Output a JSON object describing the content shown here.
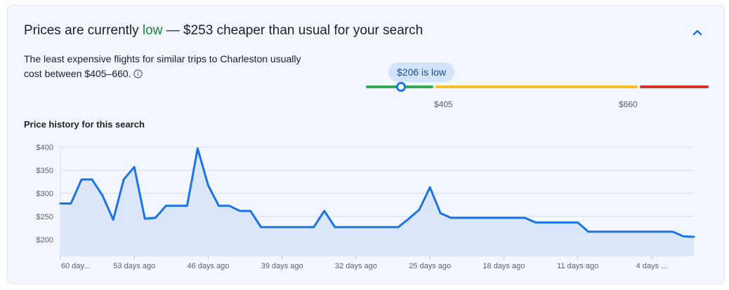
{
  "summary": {
    "headline_prefix": "Prices are currently ",
    "headline_status": "low",
    "headline_suffix": " — $253 cheaper than usual for your search",
    "description": "The least expensive flights for similar trips to Charleston usually cost between $405–660.",
    "collapse_icon": "chevron-up-icon",
    "info_icon": "info-icon"
  },
  "price_range": {
    "current_label": "$206 is low",
    "current_price": 206,
    "low_threshold_label": "$405",
    "high_threshold_label": "$660",
    "colors": {
      "low": "#34a853",
      "typical": "#f6c026",
      "high": "#d93025",
      "marker": "#1a73e8"
    }
  },
  "history": {
    "title": "Price history for this search"
  },
  "chart_data": {
    "type": "area",
    "xlabel": "",
    "ylabel": "",
    "y_ticks": [
      200,
      250,
      300,
      350,
      400
    ],
    "y_tick_labels": [
      "$200",
      "$250",
      "$300",
      "$350",
      "$400"
    ],
    "ylim": [
      175,
      405
    ],
    "x_ticks": [
      60,
      53,
      46,
      39,
      32,
      25,
      18,
      11,
      4
    ],
    "x_tick_labels": [
      "60 day...",
      "53 days ago",
      "46 days ago",
      "39 days ago",
      "32 days ago",
      "25 days ago",
      "18 days ago",
      "11 days ago",
      "4 days ..."
    ],
    "x_range": [
      60,
      0
    ],
    "grid": true,
    "line_color": "#1a73e8",
    "fill_color": "#dbe6fa",
    "series": [
      {
        "x": [
          60,
          59,
          58,
          57,
          56,
          55,
          54,
          53,
          52,
          51,
          50,
          49,
          48,
          47,
          46,
          45,
          44,
          43,
          42,
          41,
          40,
          39,
          38,
          37,
          36,
          35,
          34,
          33,
          32,
          31,
          30,
          29,
          28,
          27,
          26,
          25,
          24,
          23,
          22,
          21,
          20,
          19,
          18,
          17,
          16,
          15,
          14,
          13,
          12,
          11,
          10,
          9,
          8,
          7,
          6,
          5,
          4,
          3,
          2,
          1,
          0
        ],
        "y": [
          278,
          278,
          330,
          330,
          295,
          243,
          330,
          357,
          245,
          247,
          273,
          273,
          273,
          397,
          317,
          273,
          273,
          262,
          262,
          227,
          227,
          227,
          227,
          227,
          227,
          262,
          227,
          227,
          227,
          227,
          227,
          227,
          227,
          245,
          265,
          313,
          257,
          247,
          247,
          247,
          247,
          247,
          247,
          247,
          247,
          237,
          237,
          237,
          237,
          237,
          217,
          217,
          217,
          217,
          217,
          217,
          217,
          217,
          217,
          207,
          206
        ]
      }
    ]
  }
}
